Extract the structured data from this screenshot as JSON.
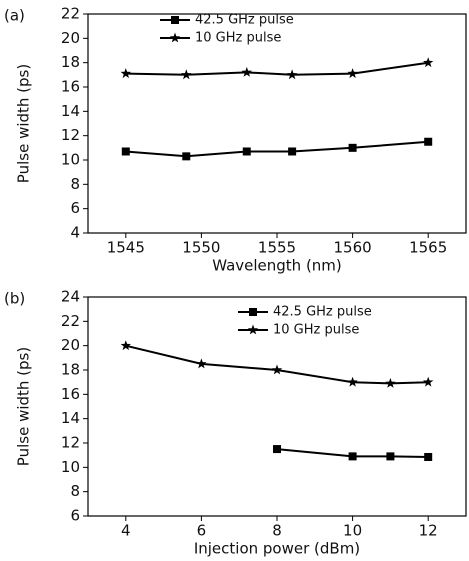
{
  "chart_data": [
    {
      "type": "line",
      "label": "(a)",
      "x_label": "Wavelength (nm)",
      "y_label": "Pulse width (ps)",
      "xlim": [
        1542.5,
        1567.5
      ],
      "xticks": [
        1545,
        1550,
        1555,
        1560,
        1565
      ],
      "ylim": [
        4,
        22
      ],
      "yticks": [
        4,
        6,
        8,
        10,
        12,
        14,
        16,
        18,
        20,
        22
      ],
      "series": [
        {
          "name": "42.5 GHz pulse",
          "color": "#000000",
          "marker": "square",
          "x": [
            1545,
            1549,
            1553,
            1556,
            1560,
            1565
          ],
          "values": [
            10.7,
            10.3,
            10.7,
            10.7,
            11.0,
            11.5
          ]
        },
        {
          "name": "10 GHz pulse",
          "color": "#000000",
          "marker": "star",
          "x": [
            1545,
            1549,
            1553,
            1556,
            1560,
            1565
          ],
          "values": [
            17.1,
            17.0,
            17.2,
            17.0,
            17.1,
            18.0
          ]
        }
      ]
    },
    {
      "type": "line",
      "label": "(b)",
      "x_label": "Injection power (dBm)",
      "y_label": "Pulse width (ps)",
      "xlim": [
        3,
        13
      ],
      "xticks": [
        4,
        6,
        8,
        10,
        12
      ],
      "ylim": [
        6,
        24
      ],
      "yticks": [
        6,
        8,
        10,
        12,
        14,
        16,
        18,
        20,
        22,
        24
      ],
      "series": [
        {
          "name": "42.5 GHz pulse",
          "color": "#000000",
          "marker": "square",
          "x": [
            8,
            10,
            11,
            12
          ],
          "values": [
            11.5,
            10.9,
            10.9,
            10.85
          ]
        },
        {
          "name": "10 GHz pulse",
          "color": "#000000",
          "marker": "star",
          "x": [
            4,
            6,
            8,
            10,
            11,
            12
          ],
          "values": [
            20.0,
            18.5,
            18.0,
            17.0,
            16.9,
            17.0
          ]
        }
      ]
    }
  ]
}
